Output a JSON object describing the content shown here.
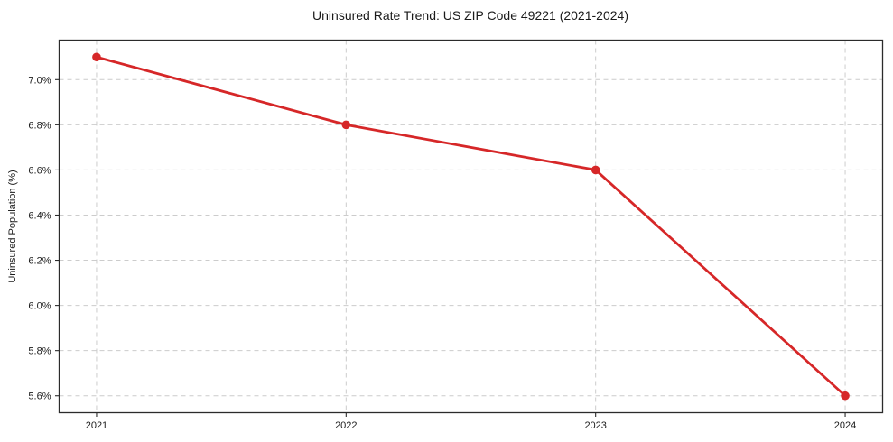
{
  "chart_data": {
    "type": "line",
    "title": "Uninsured Rate Trend: US ZIP Code 49221 (2021-2024)",
    "xlabel": "",
    "ylabel": "Uninsured Population (%)",
    "x": [
      2021,
      2022,
      2023,
      2024
    ],
    "x_tick_labels": [
      "2021",
      "2022",
      "2023",
      "2024"
    ],
    "series": [
      {
        "name": "Uninsured Population (%)",
        "values": [
          7.1,
          6.8,
          6.6,
          5.6
        ],
        "color": "#d62728",
        "marker": "circle",
        "line_width": 2.8,
        "marker_radius": 4.8
      }
    ],
    "y_ticks": [
      5.6,
      5.8,
      6.0,
      6.2,
      6.4,
      6.6,
      6.8,
      7.0
    ],
    "y_tick_labels": [
      "5.6%",
      "5.8%",
      "6.0%",
      "6.2%",
      "6.4%",
      "6.6%",
      "6.8%",
      "7.0%"
    ],
    "ylim": [
      5.525,
      7.175
    ],
    "xlim": [
      2020.85,
      2024.15
    ],
    "grid": true,
    "grid_style": "dashed",
    "legend_position": "none",
    "colors": {
      "line": "#d62728",
      "grid": "#cccccc",
      "spine": "#2b2b2b",
      "text": "#1a1a1a",
      "background": "#ffffff"
    }
  }
}
